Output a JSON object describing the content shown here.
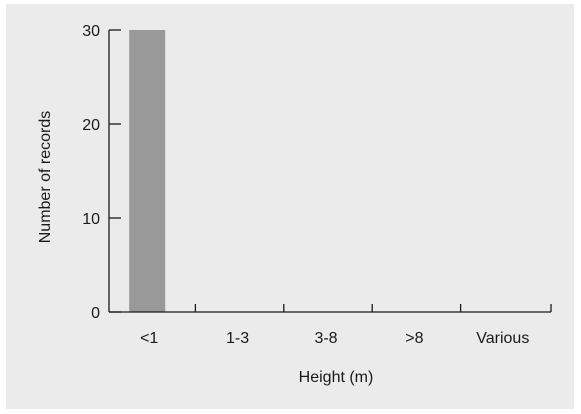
{
  "chart_data": {
    "type": "bar",
    "categories": [
      "<1",
      "1-3",
      "3-8",
      ">8",
      "Various"
    ],
    "values": [
      30,
      0,
      0,
      0,
      0
    ],
    "title": "",
    "xlabel": "Height (m)",
    "ylabel": "Number of records",
    "ylim": [
      0,
      30
    ],
    "yticks": [
      0,
      10,
      20,
      30
    ],
    "bar_color": "#999999",
    "background_color": "#ebebeb",
    "grid": false,
    "legend": "none"
  }
}
